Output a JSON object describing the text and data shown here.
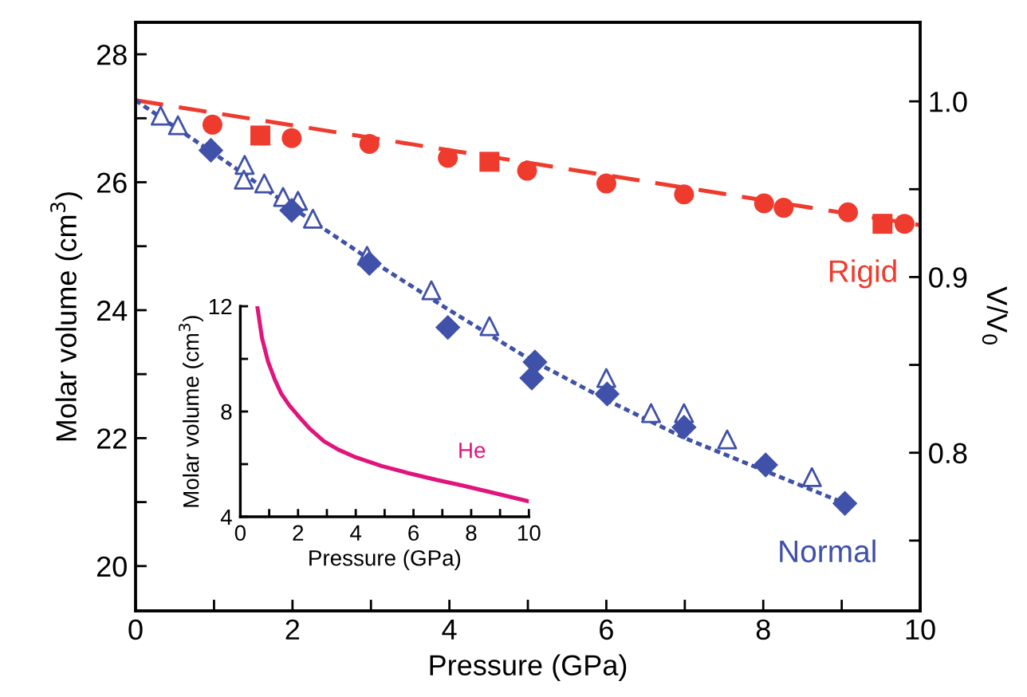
{
  "chart_data": [
    {
      "type": "scatter",
      "xlabel": "Pressure (GPa)",
      "ylabel": "Molar volume (cm$^{3}$)",
      "y2label": "V/V$_{0}$",
      "xlim": [
        0,
        10
      ],
      "ylim": [
        19.3,
        28.5
      ],
      "y2lim": [
        0.71,
        1.045
      ],
      "xticks": [
        0,
        {
          "value": 1,
          "label": null
        },
        2,
        {
          "value": 3,
          "label": null
        },
        4,
        {
          "value": 5,
          "label": null
        },
        6,
        {
          "value": 7,
          "label": null
        },
        8,
        {
          "value": 9,
          "label": null
        },
        10
      ],
      "yticks": [
        20,
        {
          "value": 21,
          "label": null
        },
        22,
        {
          "value": 23,
          "label": null
        },
        24,
        {
          "value": 25,
          "label": null
        },
        26,
        {
          "value": 27,
          "label": null
        },
        28
      ],
      "y2ticks": [
        {
          "value": 0.75,
          "label": null
        },
        {
          "value": 0.8,
          "label": "0.8"
        },
        {
          "value": 0.85,
          "label": null
        },
        {
          "value": 0.9,
          "label": "0.9"
        },
        {
          "value": 0.95,
          "label": null
        },
        {
          "value": 1.0,
          "label": "1.0"
        }
      ],
      "grid": false,
      "legend": false,
      "series": [
        {
          "type": "line",
          "name": "Rigid",
          "color": "#ee3b2e",
          "line_style": "dashed",
          "marker": "none",
          "x": [
            0,
            10
          ],
          "values": [
            27.28,
            25.33
          ]
        },
        {
          "color": "#ee3b2e",
          "marker": "circle",
          "x": [
            0.98,
            1.99,
            2.98,
            3.98,
            4.99,
            6.0,
            6.99,
            8.01,
            8.26,
            9.08,
            9.8
          ],
          "values": [
            26.9,
            26.69,
            26.6,
            26.38,
            26.18,
            25.98,
            25.81,
            25.67,
            25.6,
            25.53,
            25.35
          ]
        },
        {
          "color": "#ee3b2e",
          "marker": "square",
          "x": [
            1.59,
            4.51,
            9.52
          ],
          "values": [
            26.73,
            26.32,
            25.35
          ]
        },
        {
          "type": "line",
          "name": "Normal",
          "color": "#3f51a8",
          "line_style": "dotted",
          "marker": "none",
          "x": [
            0,
            1,
            2,
            3,
            4,
            5,
            6,
            7,
            8,
            9.1
          ],
          "values": [
            27.28,
            26.45,
            25.6,
            24.78,
            24.0,
            23.25,
            22.6,
            22.0,
            21.5,
            20.95
          ]
        },
        {
          "color": "#3f51a8",
          "marker": "diamond",
          "x": [
            0.96,
            1.99,
            2.98,
            3.98,
            5.09,
            5.05,
            6.01,
            6.99,
            8.03,
            9.04
          ],
          "values": [
            26.5,
            25.56,
            24.73,
            23.73,
            23.19,
            22.94,
            22.69,
            22.17,
            21.58,
            20.98
          ]
        },
        {
          "color": "#3f51a8",
          "marker": "triangle",
          "x": [
            0.32,
            0.54,
            1.39,
            1.38,
            1.64,
            1.88,
            2.07,
            2.26,
            2.95,
            3.77,
            4.51,
            6.0,
            6.57,
            6.99,
            7.54,
            8.62
          ],
          "values": [
            27.04,
            26.89,
            26.27,
            26.04,
            25.98,
            25.77,
            25.71,
            25.43,
            24.85,
            24.31,
            23.75,
            22.94,
            22.39,
            22.39,
            21.98,
            21.39
          ]
        }
      ]
    },
    {
      "type": "line",
      "xlabel": "Pressure (GPa)",
      "ylabel": "Molar volume (cm$^{3}$)",
      "xlim": [
        0,
        10
      ],
      "ylim": [
        4,
        12
      ],
      "xticks": [
        0,
        {
          "value": 1,
          "label": null
        },
        2,
        {
          "value": 3,
          "label": null
        },
        4,
        {
          "value": 5,
          "label": null
        },
        6,
        {
          "value": 7,
          "label": null
        },
        8,
        {
          "value": 9,
          "label": null
        },
        10
      ],
      "yticks": [
        4,
        {
          "value": 6,
          "label": null
        },
        8,
        {
          "value": 10,
          "label": null
        },
        12
      ],
      "grid": false,
      "legend": false,
      "series": [
        {
          "name": "He",
          "color": "#e0147c",
          "line_style": "solid",
          "marker": "none",
          "x": [
            0.59,
            0.75,
            0.96,
            1.2,
            1.42,
            1.7,
            1.97,
            2.4,
            2.9,
            3.4,
            4.0,
            4.9,
            5.85,
            6.8,
            7.69,
            8.8,
            9.94
          ],
          "values": [
            11.98,
            10.8,
            9.9,
            9.2,
            8.68,
            8.23,
            7.88,
            7.35,
            6.87,
            6.55,
            6.26,
            5.93,
            5.65,
            5.4,
            5.19,
            4.9,
            4.6
          ]
        }
      ]
    }
  ]
}
